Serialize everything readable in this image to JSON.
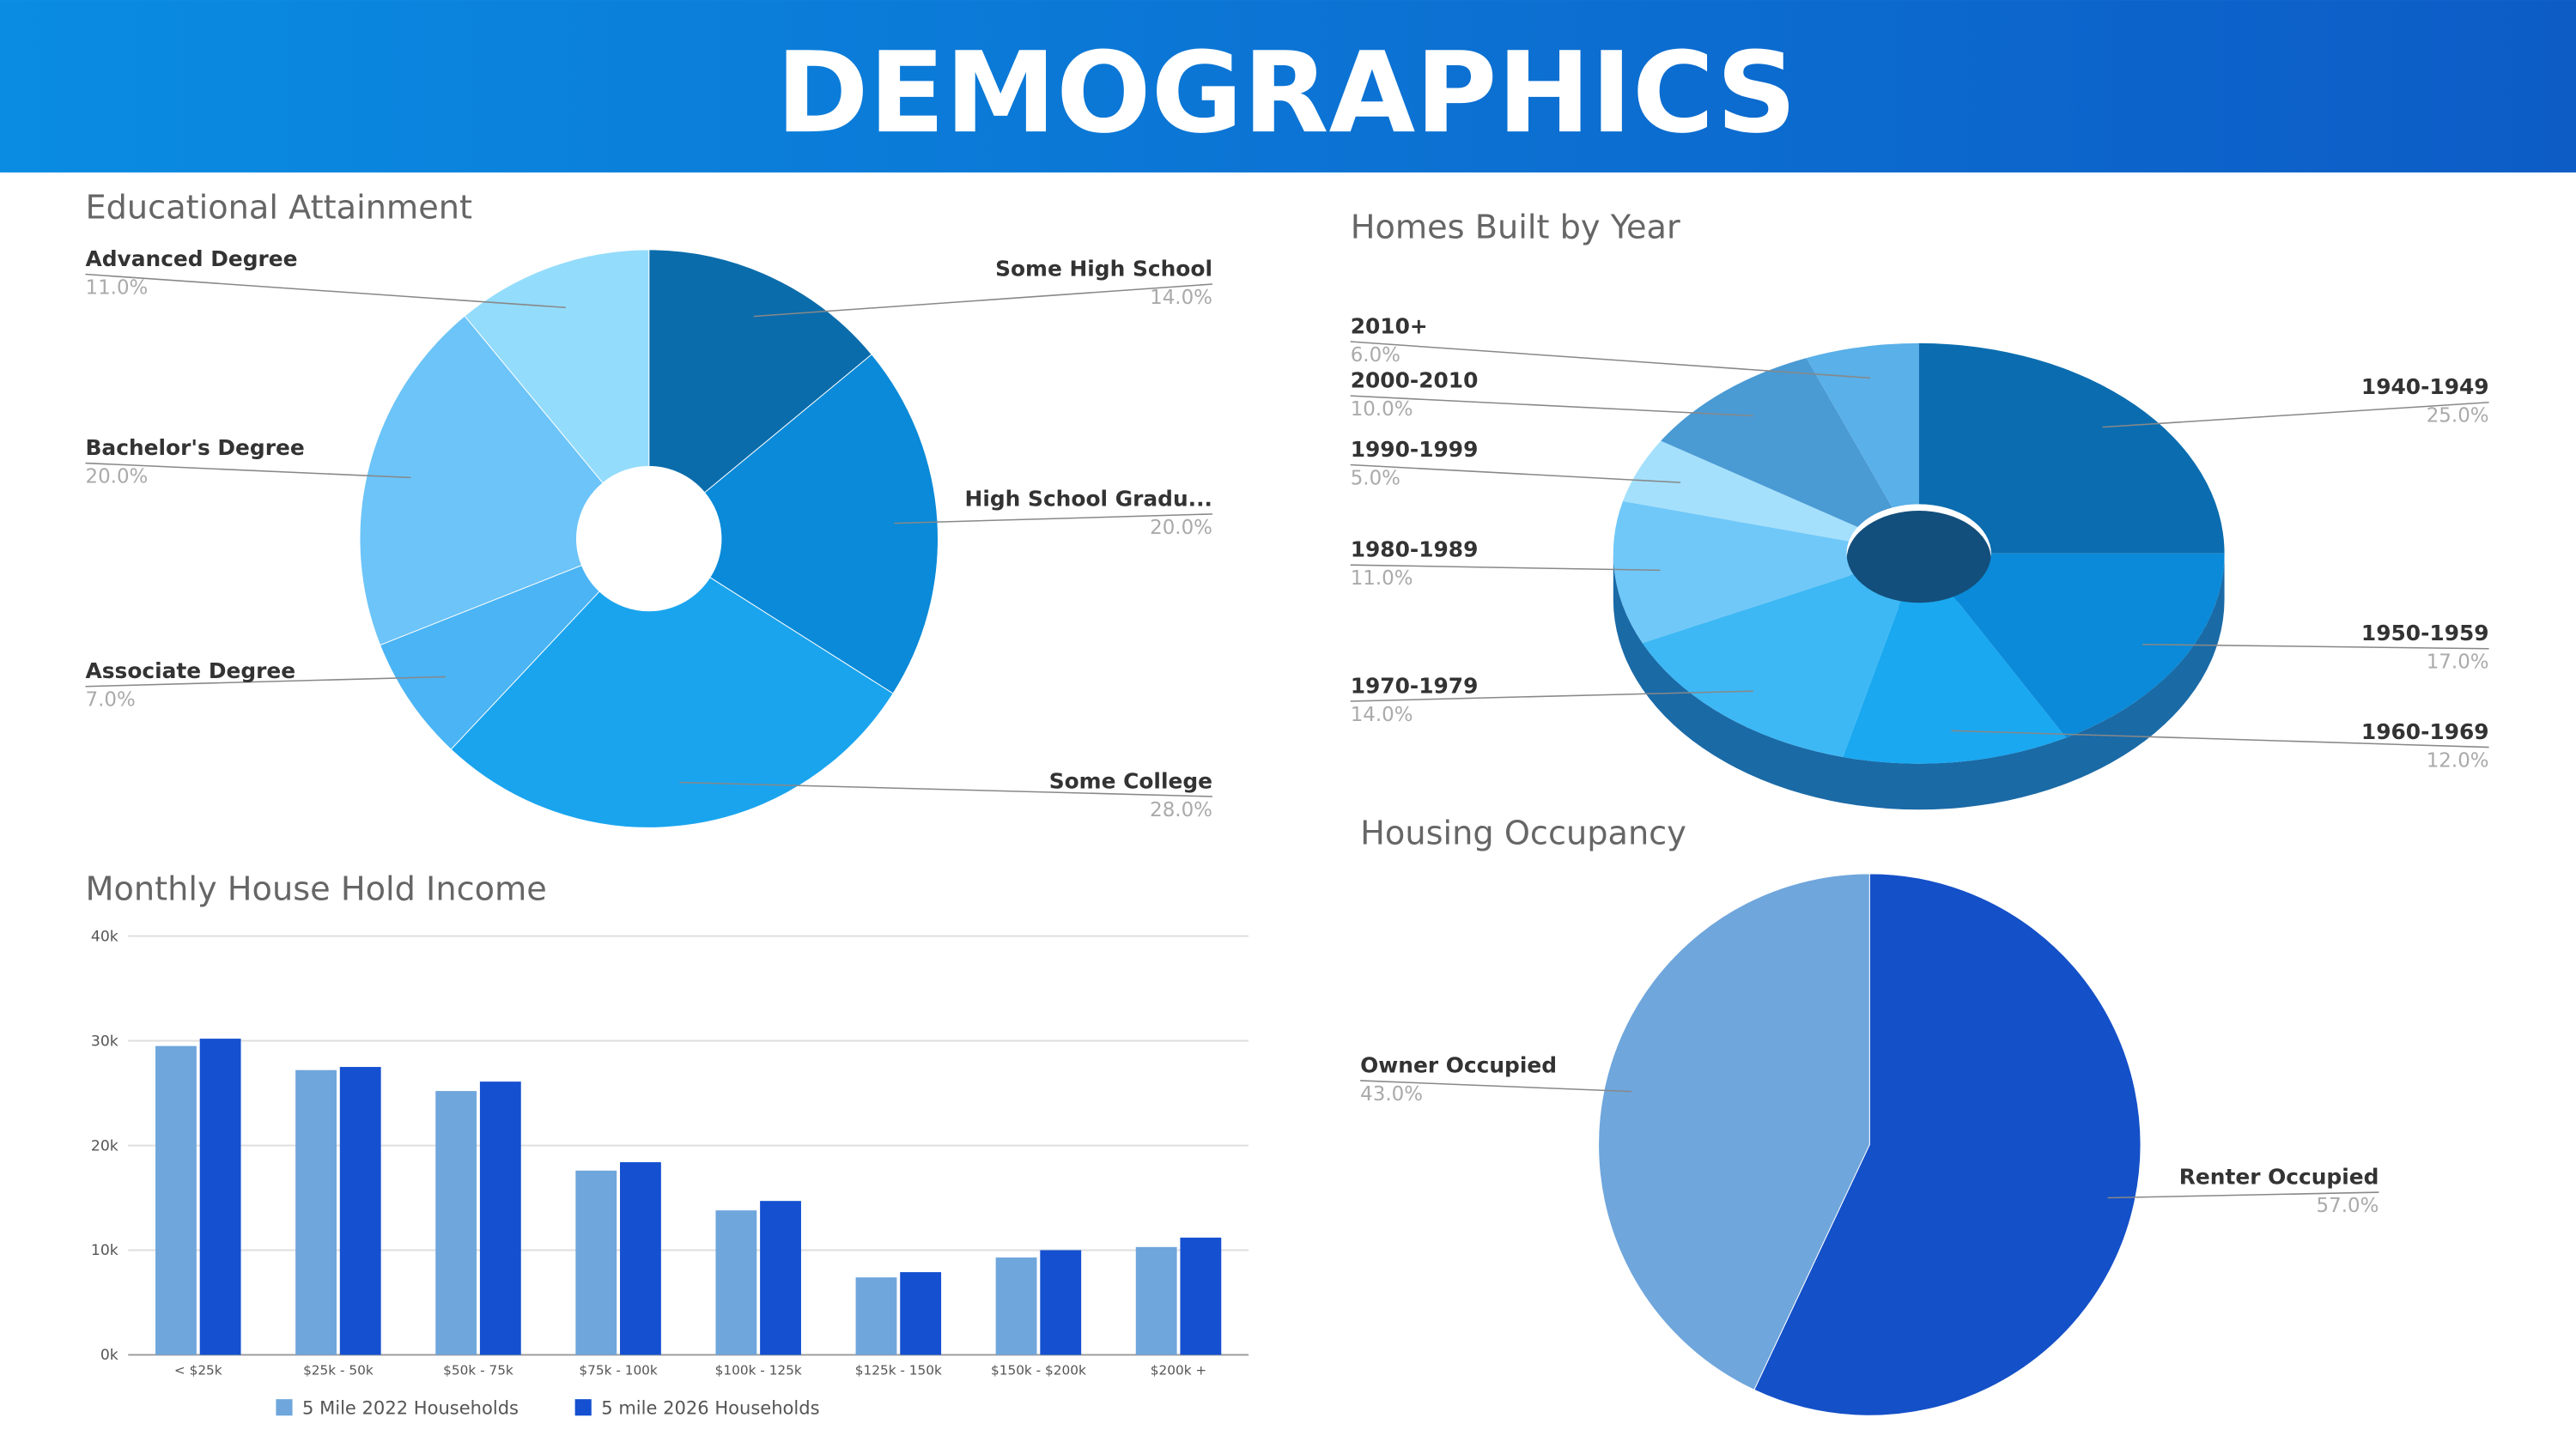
{
  "header": {
    "title": "DEMOGRAPHICS"
  },
  "chart_data": [
    {
      "type": "donut",
      "title": "Educational Attainment",
      "categories": [
        "Some High School",
        "High School Gradu...",
        "Some College",
        "Associate Degree",
        "Bachelor's Degree",
        "Advanced Degree"
      ],
      "values": [
        14,
        20,
        28,
        7,
        20,
        11
      ],
      "value_labels": [
        "14.0%",
        "20.0%",
        "28.0%",
        "7.0%",
        "20.0%",
        "11.0%"
      ],
      "colors": [
        "#0b6cab",
        "#0a8ad8",
        "#1aa4ee",
        "#4ab4f4",
        "#6cc4f8",
        "#94dcfc"
      ]
    },
    {
      "type": "donut3d",
      "title": "Homes Built by Year",
      "categories": [
        "1940-1949",
        "1950-1959",
        "1960-1969",
        "1970-1979",
        "1980-1989",
        "1990-1999",
        "2000-2010",
        "2010+"
      ],
      "values": [
        25,
        17,
        12,
        14,
        11,
        5,
        10,
        6
      ],
      "value_labels": [
        "25.0%",
        "17.0%",
        "12.0%",
        "14.0%",
        "11.0%",
        "5.0%",
        "10.0%",
        "6.0%"
      ],
      "colors": [
        "#0b6db0",
        "#0a8ad8",
        "#1aa8f0",
        "#3db8f4",
        "#70c8f8",
        "#a4e0fc",
        "#4a9ad4",
        "#5ab0e8"
      ]
    },
    {
      "type": "bar",
      "title": "Monthly House Hold Income",
      "categories": [
        "< $25k",
        "$25k - 50k",
        "$50k - 75k",
        "$75k - 100k",
        "$100k - 125k",
        "$125k - 150k",
        "$150k - $200k",
        "$200k +"
      ],
      "series": [
        {
          "name": "5 Mile 2022 Households",
          "color": "#6fa6dc",
          "values": [
            29500,
            27200,
            25200,
            17600,
            13800,
            7400,
            9300,
            10300
          ]
        },
        {
          "name": "5 mile 2026 Households",
          "color": "#1450d0",
          "values": [
            30200,
            27500,
            26100,
            18400,
            14700,
            7900,
            10000,
            11200
          ]
        }
      ],
      "ylim": [
        0,
        40000
      ],
      "yticks": [
        {
          "value": 0,
          "label": "0k"
        },
        {
          "value": 10000,
          "label": "10k"
        },
        {
          "value": 20000,
          "label": "20k"
        },
        {
          "value": 30000,
          "label": "30k"
        },
        {
          "value": 40000,
          "label": "40k"
        }
      ],
      "grid": true
    },
    {
      "type": "pie",
      "title": "Housing Occupancy",
      "categories": [
        "Renter Occupied",
        "Owner Occupied"
      ],
      "values": [
        57,
        43
      ],
      "value_labels": [
        "57.0%",
        "43.0%"
      ],
      "colors": [
        "#1450c8",
        "#6fa6dc"
      ]
    }
  ]
}
